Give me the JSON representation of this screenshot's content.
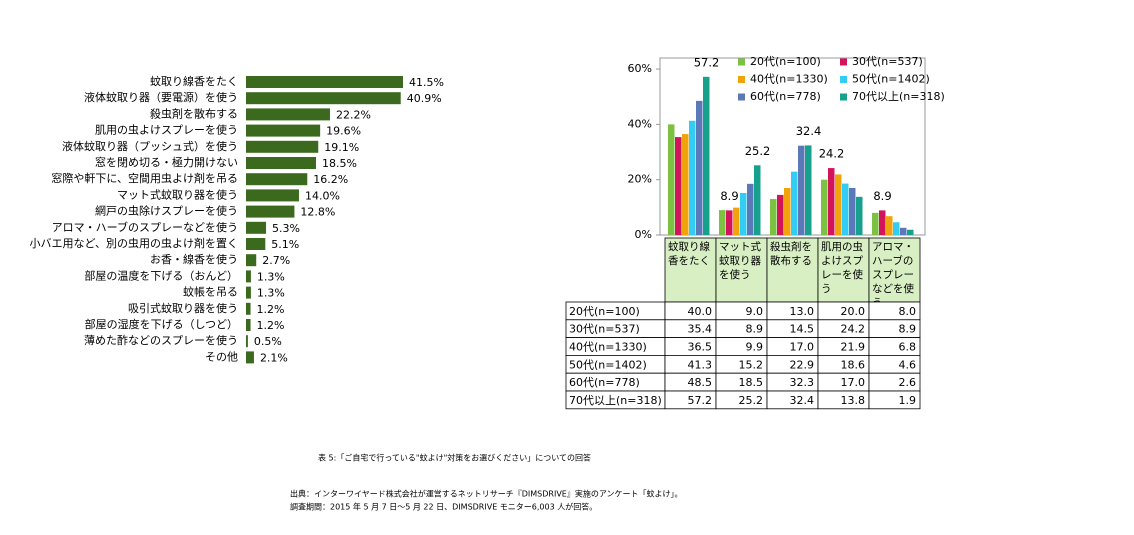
{
  "chart_data": [
    {
      "type": "hbar",
      "color": "#3b6a1f",
      "categories": [
        "蚊取り線香をたく",
        "液体蚊取り器（要電源）を使う",
        "殺虫剤を散布する",
        "肌用の虫よけスプレーを使う",
        "液体蚊取り器（プッシュ式）を使う",
        "窓を閉め切る・極力開けない",
        "窓際や軒下に、空間用虫よけ剤を吊る",
        "マット式蚊取り器を使う",
        "網戸の虫除けスプレーを使う",
        "アロマ・ハーブのスプレーなどを使う",
        "小バエ用など、別の虫用の虫よけ剤を置く",
        "お香・線香を使う",
        "部屋の温度を下げる（おんど）",
        "蚊帳を吊る",
        "吸引式蚊取り器を使う",
        "部屋の湿度を下げる（しつど）",
        "薄めた酢などのスプレーを使う",
        "その他"
      ],
      "values": [
        41.5,
        40.9,
        22.2,
        19.6,
        19.1,
        18.5,
        16.2,
        14.0,
        12.8,
        5.3,
        5.1,
        2.7,
        1.3,
        1.3,
        1.2,
        1.2,
        0.5,
        2.1
      ],
      "value_labels": [
        "41.5%",
        "40.9%",
        "22.2%",
        "19.6%",
        "19.1%",
        "18.5%",
        "16.2%",
        "14.0%",
        "12.8%",
        "5.3%",
        "5.1%",
        "2.7%",
        "1.3%",
        "1.3%",
        "1.2%",
        "1.2%",
        "0.5%",
        "2.1%"
      ]
    },
    {
      "type": "bar",
      "categories": [
        "蚊取り線香をたく",
        "マット式蚊取り器を使う",
        "殺虫剤を散布する",
        "肌用の虫よけスプレーを使う",
        "アロマ・ハーブのスプレーなどを使う"
      ],
      "ylim": [
        0,
        64
      ],
      "yticks": [
        {
          "value": 0,
          "label": "0%"
        },
        {
          "value": 20,
          "label": "20%"
        },
        {
          "value": 40,
          "label": "40%"
        },
        {
          "value": 60,
          "label": "60%"
        }
      ],
      "series": [
        {
          "name": "20代(n=100)",
          "color": "#7cc142",
          "values": [
            40.0,
            9.0,
            13.0,
            20.0,
            8.0
          ],
          "value_labels": [
            "40.0",
            "9.0",
            "13.0",
            "20.0",
            "8.0"
          ]
        },
        {
          "name": "30代(n=537)",
          "color": "#d4145a",
          "values": [
            35.4,
            8.9,
            14.5,
            24.2,
            8.9
          ],
          "value_labels": [
            "35.4",
            "8.9",
            "14.5",
            "24.2",
            "8.9"
          ]
        },
        {
          "name": "40代(n=1330)",
          "color": "#f0a30a",
          "values": [
            36.5,
            9.9,
            17.0,
            21.9,
            6.8
          ],
          "value_labels": [
            "36.5",
            "9.9",
            "17.0",
            "21.9",
            "6.8"
          ]
        },
        {
          "name": "50代(n=1402)",
          "color": "#33ccf5",
          "values": [
            41.3,
            15.2,
            22.9,
            18.6,
            4.6
          ],
          "value_labels": [
            "41.3",
            "15.2",
            "22.9",
            "18.6",
            "4.6"
          ]
        },
        {
          "name": "60代(n=778)",
          "color": "#5b78b8",
          "values": [
            48.5,
            18.5,
            32.3,
            17.0,
            2.6
          ],
          "value_labels": [
            "48.5",
            "18.5",
            "32.3",
            "17.0",
            "2.6"
          ]
        },
        {
          "name": "70代以上(n=318)",
          "color": "#17a08c",
          "values": [
            57.2,
            25.2,
            32.4,
            13.8,
            1.9
          ],
          "value_labels": [
            "57.2",
            "25.2",
            "32.4",
            "13.8",
            "1.9"
          ]
        }
      ]
    }
  ],
  "caption": "表 5:「ご自宅で行っている\"蚊よけ\"対策をお選びください」についての回答",
  "source": [
    "出典：インターワイヤード株式会社が運営するネットリサーチ『DIMSDRIVE』実施のアンケート「蚊よけ」。",
    "調査期間：2015 年 5 月 7 日～5 月 22 日、DIMSDRIVE モニター6,003 人が回答。"
  ]
}
